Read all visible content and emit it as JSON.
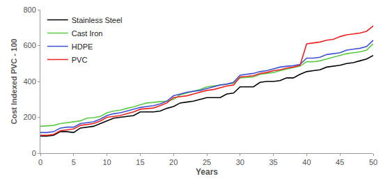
{
  "chart_data": {
    "type": "line",
    "x_label": "Years",
    "y_label": "Cost Indexed PVC - 100",
    "x": [
      0,
      1,
      2,
      3,
      4,
      5,
      6,
      7,
      8,
      9,
      10,
      11,
      12,
      13,
      14,
      15,
      16,
      17,
      18,
      19,
      20,
      21,
      22,
      23,
      24,
      25,
      26,
      27,
      28,
      29,
      30,
      31,
      32,
      33,
      34,
      35,
      36,
      37,
      38,
      39,
      40,
      41,
      42,
      43,
      44,
      45,
      46,
      47,
      48,
      49,
      50
    ],
    "series": [
      {
        "name": "Stainless Steel",
        "color": "#000000",
        "values": [
          95,
          95,
          100,
          120,
          120,
          115,
          140,
          145,
          150,
          165,
          180,
          195,
          200,
          205,
          210,
          230,
          230,
          230,
          235,
          250,
          260,
          280,
          285,
          290,
          300,
          310,
          310,
          310,
          330,
          335,
          370,
          370,
          370,
          395,
          400,
          400,
          405,
          420,
          420,
          440,
          455,
          460,
          465,
          480,
          485,
          490,
          500,
          505,
          515,
          525,
          545
        ]
      },
      {
        "name": "Cast Iron",
        "color": "#5cc947",
        "values": [
          150,
          152,
          155,
          165,
          170,
          175,
          180,
          195,
          198,
          205,
          225,
          235,
          240,
          250,
          258,
          270,
          280,
          283,
          288,
          290,
          300,
          325,
          335,
          345,
          355,
          370,
          375,
          380,
          385,
          390,
          420,
          422,
          425,
          440,
          445,
          450,
          460,
          470,
          478,
          485,
          510,
          510,
          515,
          525,
          535,
          545,
          555,
          560,
          565,
          575,
          610
        ]
      },
      {
        "name": "HDPE",
        "color": "#3f51d1",
        "values": [
          115,
          115,
          120,
          140,
          145,
          145,
          165,
          170,
          175,
          190,
          210,
          220,
          225,
          235,
          245,
          255,
          260,
          265,
          275,
          290,
          320,
          330,
          340,
          345,
          350,
          360,
          370,
          380,
          385,
          395,
          435,
          440,
          445,
          455,
          460,
          470,
          480,
          485,
          488,
          495,
          530,
          530,
          535,
          550,
          555,
          560,
          575,
          580,
          585,
          595,
          630
        ]
      },
      {
        "name": "PVC",
        "color": "#ee2222",
        "values": [
          100,
          100,
          105,
          125,
          130,
          135,
          155,
          160,
          165,
          180,
          200,
          205,
          210,
          220,
          230,
          245,
          248,
          252,
          265,
          280,
          310,
          315,
          320,
          330,
          340,
          350,
          355,
          365,
          375,
          380,
          425,
          428,
          432,
          445,
          450,
          460,
          465,
          475,
          480,
          490,
          610,
          615,
          620,
          630,
          635,
          650,
          660,
          665,
          670,
          680,
          710
        ]
      }
    ],
    "xlim": [
      0,
      50
    ],
    "xticks": [
      0,
      5,
      10,
      15,
      20,
      25,
      30,
      35,
      40,
      45,
      50
    ],
    "ylim": [
      0,
      800
    ],
    "yticks": [
      0,
      200,
      400,
      600,
      800
    ],
    "grid": false,
    "legend": "top-left"
  }
}
